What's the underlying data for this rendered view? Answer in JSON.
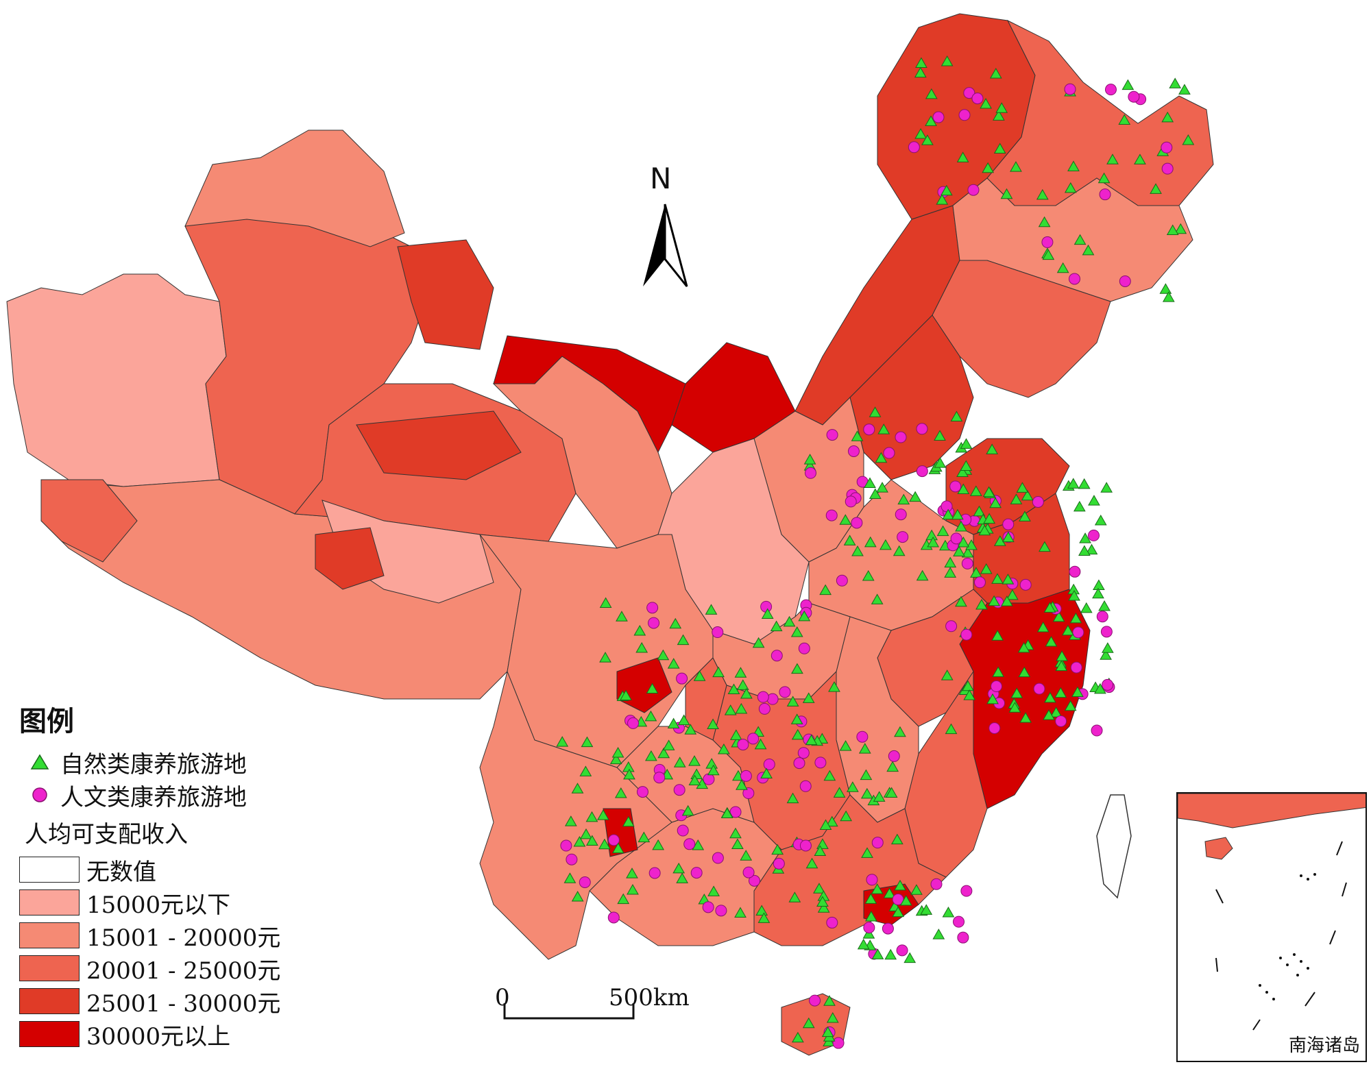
{
  "legend": {
    "title": "图例",
    "natural_label": "自然类康养旅游地",
    "cultural_label": "人文类康养旅游地",
    "income_title": "人均可支配收入",
    "classes": [
      {
        "label": "无数值",
        "color": "#ffffff"
      },
      {
        "label": "15000元以下",
        "color": "#fba59a"
      },
      {
        "label": "15001 - 20000元",
        "color": "#f58a74"
      },
      {
        "label": "20001 - 25000元",
        "color": "#ee6450"
      },
      {
        "label": "25001 - 30000元",
        "color": "#e03b27"
      },
      {
        "label": "30000元以上",
        "color": "#d40000"
      }
    ]
  },
  "symbols": {
    "natural_color": "#33dd33",
    "cultural_color": "#ee22cc"
  },
  "north_arrow": {
    "label": "N"
  },
  "scale": {
    "start": "0",
    "end": "500km"
  },
  "inset": {
    "label": "南海诸岛"
  }
}
